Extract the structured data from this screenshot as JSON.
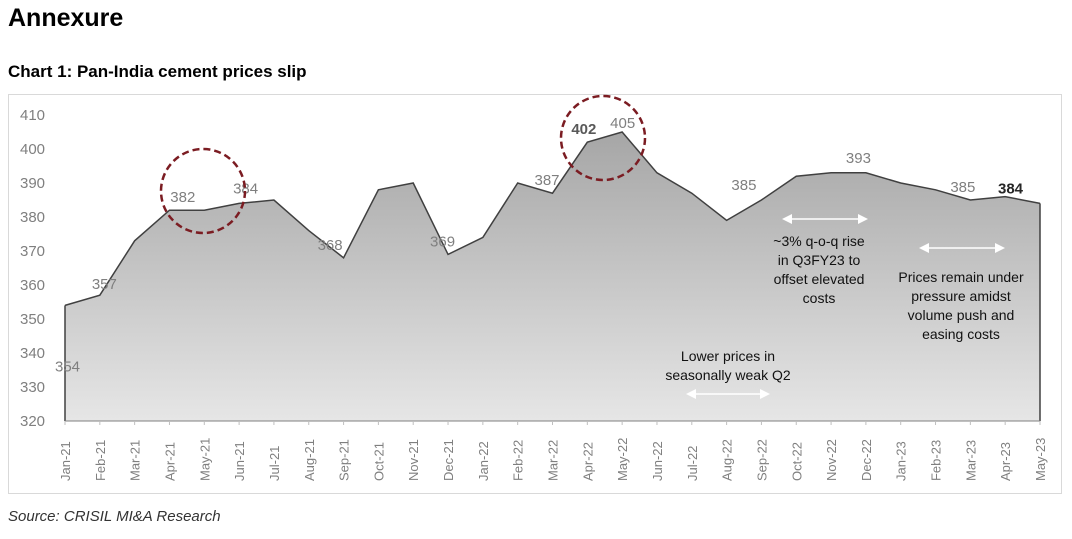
{
  "page": {
    "heading": "Annexure",
    "chart_title": "Chart 1: Pan-India cement prices slip",
    "source": "Source: CRISIL MI&A Research"
  },
  "colors": {
    "line": "#404040",
    "fill_top": "#a6a6a6",
    "fill_bottom": "#e6e6e6",
    "circle": "#7b1c22",
    "arrow": "#ffffff"
  },
  "chart_data": {
    "type": "area",
    "title": "Chart 1: Pan-India cement prices slip",
    "xlabel": "",
    "ylabel": "",
    "ylim": [
      320,
      410
    ],
    "yticks": [
      320,
      330,
      340,
      350,
      360,
      370,
      380,
      390,
      400,
      410
    ],
    "grid": false,
    "legend": "none",
    "categories": [
      "Jan-21",
      "Feb-21",
      "Mar-21",
      "Apr-21",
      "May-21",
      "Jun-21",
      "Jul-21",
      "Aug-21",
      "Sep-21",
      "Oct-21",
      "Nov-21",
      "Dec-21",
      "Jan-22",
      "Feb-22",
      "Mar-22",
      "Apr-22",
      "May-22",
      "Jun-22",
      "Jul-22",
      "Aug-22",
      "Sep-22",
      "Oct-22",
      "Nov-22",
      "Dec-22",
      "Jan-23",
      "Feb-23",
      "Mar-23",
      "Apr-23",
      "May-23"
    ],
    "series": [
      {
        "name": "Pan-India cement price",
        "values": [
          354,
          357,
          373,
          382,
          382,
          384,
          385,
          376,
          368,
          388,
          390,
          369,
          374,
          390,
          387,
          402,
          405,
          393,
          387,
          379,
          385,
          392,
          393,
          393,
          390,
          388,
          385,
          386,
          384
        ]
      }
    ],
    "data_labels": [
      {
        "index": 0,
        "text": "354"
      },
      {
        "index": 1,
        "text": "357"
      },
      {
        "index": 4,
        "text": "382"
      },
      {
        "index": 5,
        "text": "384"
      },
      {
        "index": 8,
        "text": "368"
      },
      {
        "index": 11,
        "text": "369"
      },
      {
        "index": 14,
        "text": "387"
      },
      {
        "index": 15,
        "text": "402",
        "bold": true
      },
      {
        "index": 16,
        "text": "405"
      },
      {
        "index": 20,
        "text": "385"
      },
      {
        "index": 23,
        "text": "393"
      },
      {
        "index": 26,
        "text": "385"
      },
      {
        "index": 28,
        "text": "384",
        "bold": true
      }
    ],
    "annotations": [
      {
        "lines": [
          "Lower prices in",
          "seasonally weak Q2"
        ],
        "span": [
          "Jul-22",
          "Sep-22"
        ]
      },
      {
        "lines": [
          "~3% q-o-q rise",
          "in Q3FY23 to",
          "offset elevated",
          "costs"
        ],
        "span": [
          "Oct-22",
          "Dec-22"
        ]
      },
      {
        "lines": [
          "Prices remain under",
          "pressure amidst",
          "volume push and",
          "easing costs"
        ],
        "span": [
          "Jan-23",
          "Apr-23"
        ]
      }
    ],
    "highlight_circles": [
      {
        "around": [
          "Apr-21",
          "Jun-21"
        ]
      },
      {
        "around": [
          "Apr-22",
          "May-22"
        ]
      }
    ]
  }
}
